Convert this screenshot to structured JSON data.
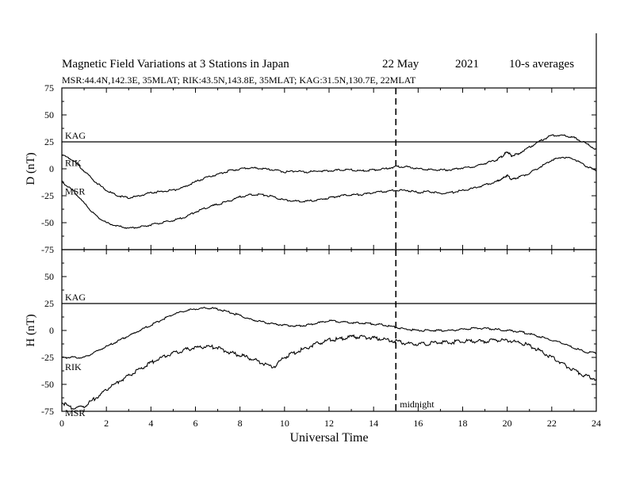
{
  "header": {
    "title": "Magnetic Field Variations at 3 Stations in Japan",
    "date": "22 May",
    "year": "2021",
    "averaging": "10-s averages",
    "stations": "MSR:44.4N,142.3E, 35MLAT;  RIK:43.5N,143.8E, 35MLAT;  KAG:31.5N,130.7E, 22MLAT"
  },
  "chart_data": [
    {
      "type": "line",
      "panel": "top",
      "ylabel": "D (nT)",
      "ylim": [
        -75,
        75
      ],
      "xlim": [
        0,
        24
      ],
      "yticks": [
        -75,
        -50,
        -25,
        0,
        25,
        50,
        75
      ],
      "series": [
        {
          "name": "KAG",
          "x": [
            0,
            24
          ],
          "y": [
            25,
            25
          ]
        },
        {
          "name": "RIK",
          "x": [
            0,
            0.5,
            1,
            1.5,
            2,
            2.5,
            3,
            3.5,
            4,
            4.5,
            5,
            5.5,
            6,
            6.5,
            7,
            7.5,
            8,
            8.5,
            9,
            9.5,
            10,
            10.5,
            11,
            11.5,
            12,
            12.5,
            13,
            13.5,
            14,
            14.5,
            15,
            15.5,
            16,
            16.5,
            17,
            17.5,
            18,
            18.5,
            19,
            19.5,
            19.8,
            20,
            20.2,
            20.5,
            21,
            21.5,
            22,
            22.5,
            23,
            23.5,
            24
          ],
          "y": [
            13,
            8,
            -2,
            -12,
            -20,
            -25,
            -27,
            -25,
            -22,
            -21,
            -20,
            -17,
            -12,
            -8,
            -5,
            -2,
            0,
            1,
            0,
            -1,
            -3,
            -2,
            -3,
            -2,
            -2,
            -1,
            -1,
            -2,
            -1,
            0,
            2,
            2,
            0,
            -1,
            -1,
            -1,
            1,
            2,
            5,
            8,
            12,
            16,
            12,
            14,
            20,
            26,
            31,
            31,
            29,
            24,
            18
          ]
        },
        {
          "name": "MSR",
          "x": [
            0,
            0.5,
            1,
            1.5,
            2,
            2.5,
            3,
            3.5,
            4,
            4.5,
            5,
            5.5,
            6,
            6.5,
            7,
            7.5,
            8,
            8.5,
            9,
            9.5,
            10,
            10.5,
            11,
            11.5,
            12,
            12.5,
            13,
            13.5,
            14,
            14.5,
            15,
            15.5,
            16,
            16.5,
            17,
            17.5,
            18,
            18.5,
            19,
            19.5,
            19.8,
            20,
            20.2,
            20.5,
            21,
            21.5,
            22,
            22.5,
            23,
            23.5,
            24
          ],
          "y": [
            -12,
            -20,
            -32,
            -43,
            -50,
            -53,
            -55,
            -54,
            -52,
            -50,
            -48,
            -45,
            -40,
            -36,
            -33,
            -30,
            -26,
            -24,
            -24,
            -26,
            -29,
            -30,
            -30,
            -29,
            -27,
            -25,
            -24,
            -24,
            -22,
            -21,
            -20,
            -20,
            -22,
            -21,
            -23,
            -22,
            -20,
            -18,
            -15,
            -12,
            -9,
            -6,
            -10,
            -8,
            -4,
            2,
            8,
            11,
            9,
            3,
            -2
          ]
        }
      ]
    },
    {
      "type": "line",
      "panel": "bottom",
      "ylabel": "H (nT)",
      "ylim": [
        -75,
        75
      ],
      "xlim": [
        0,
        24
      ],
      "yticks": [
        -75,
        -50,
        -25,
        0,
        25,
        50,
        75
      ],
      "xlabel": "Universal Time",
      "xticks": [
        0,
        2,
        4,
        6,
        8,
        10,
        12,
        14,
        16,
        18,
        20,
        22,
        24
      ],
      "annotation": {
        "x": 15,
        "label": "midnight"
      },
      "series": [
        {
          "name": "KAG",
          "x": [
            0,
            24
          ],
          "y": [
            25,
            25
          ]
        },
        {
          "name": "RIK",
          "x": [
            0,
            0.5,
            1,
            1.5,
            2,
            2.5,
            3,
            3.5,
            4,
            4.5,
            5,
            5.5,
            6,
            6.5,
            7,
            7.5,
            8,
            8.5,
            9,
            9.5,
            10,
            10.5,
            11,
            11.5,
            12,
            12.5,
            13,
            13.5,
            14,
            14.5,
            15,
            15.5,
            16,
            16.5,
            17,
            17.5,
            18,
            18.5,
            19,
            19.5,
            20,
            20.5,
            21,
            21.5,
            22,
            22.5,
            23,
            23.5,
            24
          ],
          "y": [
            -25,
            -25,
            -25,
            -20,
            -15,
            -10,
            -5,
            0,
            5,
            10,
            15,
            18,
            20,
            21,
            20,
            17,
            14,
            10,
            8,
            6,
            5,
            4,
            5,
            7,
            9,
            8,
            7,
            7,
            6,
            5,
            3,
            1,
            0,
            0,
            0,
            0,
            1,
            2,
            2,
            1,
            0,
            -1,
            -3,
            -6,
            -9,
            -12,
            -16,
            -20,
            -21
          ]
        },
        {
          "name": "MSR",
          "x": [
            0,
            0.5,
            1,
            1.5,
            2,
            2.5,
            3,
            3.5,
            4,
            4.5,
            5,
            5.5,
            6,
            6.5,
            7,
            7.5,
            8,
            8.5,
            9,
            9.5,
            10,
            10.5,
            11,
            11.5,
            12,
            12.5,
            13,
            13.5,
            14,
            14.5,
            15,
            15.5,
            16,
            16.5,
            17,
            17.5,
            18,
            18.5,
            19,
            19.5,
            20,
            20.5,
            21,
            21.5,
            22,
            22.5,
            23,
            23.5,
            24
          ],
          "y": [
            -67,
            -72,
            -70,
            -63,
            -55,
            -48,
            -42,
            -36,
            -30,
            -25,
            -21,
            -18,
            -16,
            -15,
            -16,
            -20,
            -23,
            -26,
            -30,
            -34,
            -25,
            -20,
            -16,
            -12,
            -9,
            -8,
            -6,
            -6,
            -7,
            -8,
            -10,
            -12,
            -13,
            -12,
            -11,
            -11,
            -10,
            -10,
            -10,
            -9,
            -9,
            -11,
            -14,
            -19,
            -25,
            -31,
            -37,
            -42,
            -45
          ]
        }
      ]
    }
  ]
}
